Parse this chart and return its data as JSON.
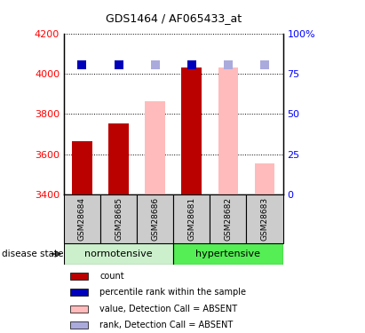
{
  "title": "GDS1464 / AF065433_at",
  "samples": [
    "GSM28684",
    "GSM28685",
    "GSM28686",
    "GSM28681",
    "GSM28682",
    "GSM28683"
  ],
  "ylim_left": [
    3400,
    4200
  ],
  "ylim_right": [
    0,
    100
  ],
  "count_values": [
    3665,
    3755,
    null,
    4030,
    null,
    null
  ],
  "count_color": "#bb0000",
  "percentile_values": [
    4042,
    4042,
    null,
    4042,
    null,
    null
  ],
  "percentile_color": "#0000bb",
  "absent_value_values": [
    null,
    null,
    3865,
    null,
    4030,
    3555
  ],
  "absent_value_color": "#ffbbbb",
  "absent_rank_values": [
    null,
    null,
    4042,
    null,
    4042,
    4042
  ],
  "absent_rank_color": "#aaaadd",
  "bar_width": 0.55,
  "dot_size": 55,
  "dot_marker": "s",
  "normotensive_bg": "#ccf0cc",
  "hypertensive_bg": "#55ee55",
  "label_bg": "#cccccc",
  "grid_color": "black",
  "grid_style": "dotted",
  "yticks_left": [
    3400,
    3600,
    3800,
    4000,
    4200
  ],
  "yticks_right": [
    0,
    25,
    50,
    75,
    100
  ],
  "legend_items": [
    {
      "label": "count",
      "color": "#bb0000"
    },
    {
      "label": "percentile rank within the sample",
      "color": "#0000bb"
    },
    {
      "label": "value, Detection Call = ABSENT",
      "color": "#ffbbbb"
    },
    {
      "label": "rank, Detection Call = ABSENT",
      "color": "#aaaadd"
    }
  ]
}
